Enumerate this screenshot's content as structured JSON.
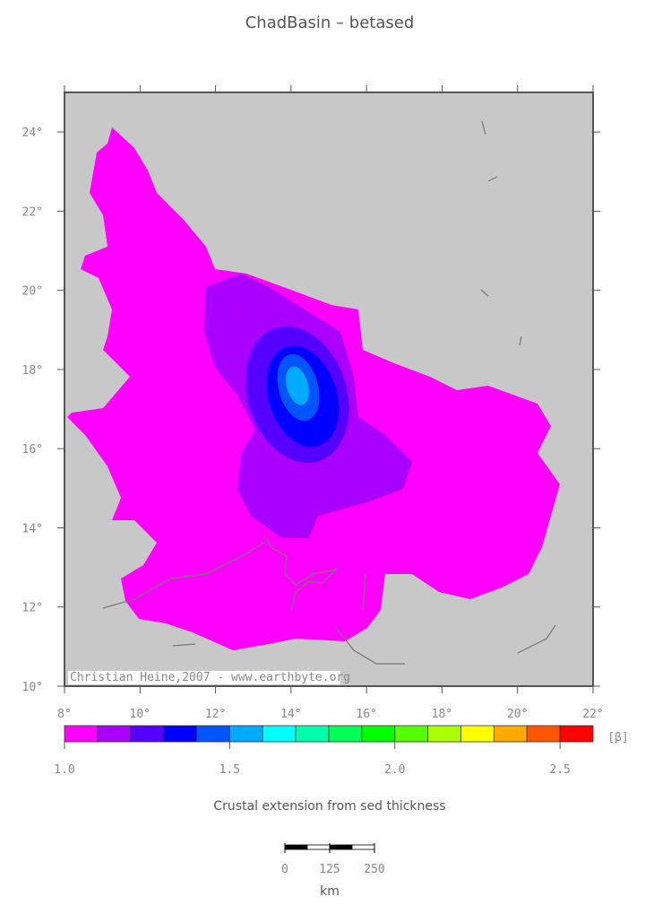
{
  "title": "ChadBasin – betased",
  "map": {
    "lon_range": [
      8,
      22
    ],
    "lat_range": [
      10,
      25
    ],
    "lon_ticks": [
      {
        "value": 8,
        "label": "8°"
      },
      {
        "value": 10,
        "label": "10°"
      },
      {
        "value": 12,
        "label": "12°"
      },
      {
        "value": 14,
        "label": "14°"
      },
      {
        "value": 16,
        "label": "16°"
      },
      {
        "value": 18,
        "label": "18°"
      },
      {
        "value": 20,
        "label": "20°"
      },
      {
        "value": 22,
        "label": "22°"
      }
    ],
    "lat_ticks": [
      {
        "value": 10,
        "label": "10°"
      },
      {
        "value": 12,
        "label": "12°"
      },
      {
        "value": 14,
        "label": "14°"
      },
      {
        "value": 16,
        "label": "16°"
      },
      {
        "value": 18,
        "label": "18°"
      },
      {
        "value": 20,
        "label": "20°"
      },
      {
        "value": 22,
        "label": "22°"
      },
      {
        "value": 24,
        "label": "24°"
      }
    ],
    "credit": "Christian Heine,2007 - www.earthbyte.org"
  },
  "colorbar": {
    "range": [
      1.0,
      2.6
    ],
    "colors": [
      "#ff00ff",
      "#aa00ff",
      "#5500ff",
      "#0000ff",
      "#0055ff",
      "#00aaff",
      "#00ffff",
      "#00ffaa",
      "#00ff55",
      "#00ff00",
      "#55ff00",
      "#aaff00",
      "#ffff00",
      "#ffaa00",
      "#ff5500",
      "#ff0000"
    ],
    "ticks": [
      {
        "value": 1.0,
        "label": "1.0"
      },
      {
        "value": 1.5,
        "label": "1.5"
      },
      {
        "value": 2.0,
        "label": "2.0"
      },
      {
        "value": 2.5,
        "label": "2.5"
      }
    ],
    "unit": "[β]",
    "label": "Crustal extension from sed thickness"
  },
  "scale_bar": {
    "range": [
      0,
      250
    ],
    "ticks": [
      {
        "value": 0,
        "label": "0"
      },
      {
        "value": 125,
        "label": "125"
      },
      {
        "value": 250,
        "label": "250"
      }
    ],
    "unit": "km"
  }
}
